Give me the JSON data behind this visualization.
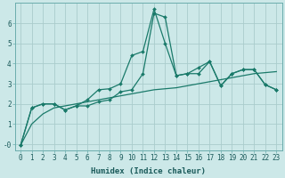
{
  "title": "",
  "xlabel": "Humidex (Indice chaleur)",
  "bg_color": "#cce8e8",
  "grid_color": "#aacccc",
  "line_color": "#1a7a6a",
  "xlim": [
    -0.5,
    23.5
  ],
  "ylim": [
    -0.3,
    7.0
  ],
  "yticks": [
    0,
    1,
    2,
    3,
    4,
    5,
    6
  ],
  "ytick_labels": [
    "-0",
    "1",
    "2",
    "3",
    "4",
    "5",
    "6"
  ],
  "xticks": [
    0,
    1,
    2,
    3,
    4,
    5,
    6,
    7,
    8,
    9,
    10,
    11,
    12,
    13,
    14,
    15,
    16,
    17,
    18,
    19,
    20,
    21,
    22,
    23
  ],
  "line1_x": [
    0,
    1,
    2,
    3,
    4,
    5,
    6,
    7,
    8,
    9,
    10,
    11,
    12,
    13,
    14,
    15,
    16,
    17,
    18,
    19,
    20,
    21,
    22,
    23
  ],
  "line1_y": [
    -0.05,
    1.8,
    2.0,
    2.0,
    1.7,
    1.9,
    1.9,
    2.1,
    2.2,
    2.6,
    2.7,
    3.5,
    6.5,
    6.3,
    3.4,
    3.5,
    3.5,
    4.1,
    2.9,
    3.5,
    3.7,
    3.7,
    2.95,
    2.7
  ],
  "line2_x": [
    0,
    1,
    2,
    3,
    4,
    5,
    6,
    7,
    8,
    9,
    10,
    11,
    12,
    13,
    14,
    15,
    16,
    17,
    18,
    19,
    20,
    21,
    22,
    23
  ],
  "line2_y": [
    -0.05,
    1.8,
    2.0,
    2.0,
    1.7,
    1.9,
    2.2,
    2.7,
    2.75,
    3.0,
    4.4,
    4.6,
    6.7,
    5.0,
    3.4,
    3.5,
    3.8,
    4.1,
    2.9,
    3.5,
    3.7,
    3.7,
    2.95,
    2.7
  ],
  "line3_x": [
    0,
    1,
    2,
    3,
    4,
    5,
    6,
    7,
    8,
    9,
    10,
    11,
    12,
    13,
    14,
    15,
    16,
    17,
    18,
    19,
    20,
    21,
    22,
    23
  ],
  "line3_y": [
    -0.05,
    1.0,
    1.5,
    1.8,
    1.9,
    2.0,
    2.1,
    2.2,
    2.3,
    2.4,
    2.5,
    2.6,
    2.7,
    2.75,
    2.8,
    2.9,
    3.0,
    3.1,
    3.2,
    3.3,
    3.4,
    3.5,
    3.55,
    3.6
  ],
  "marker": "D",
  "marker_size": 2,
  "line_width": 0.9,
  "tick_fontsize": 5.5,
  "xlabel_fontsize": 6.5
}
